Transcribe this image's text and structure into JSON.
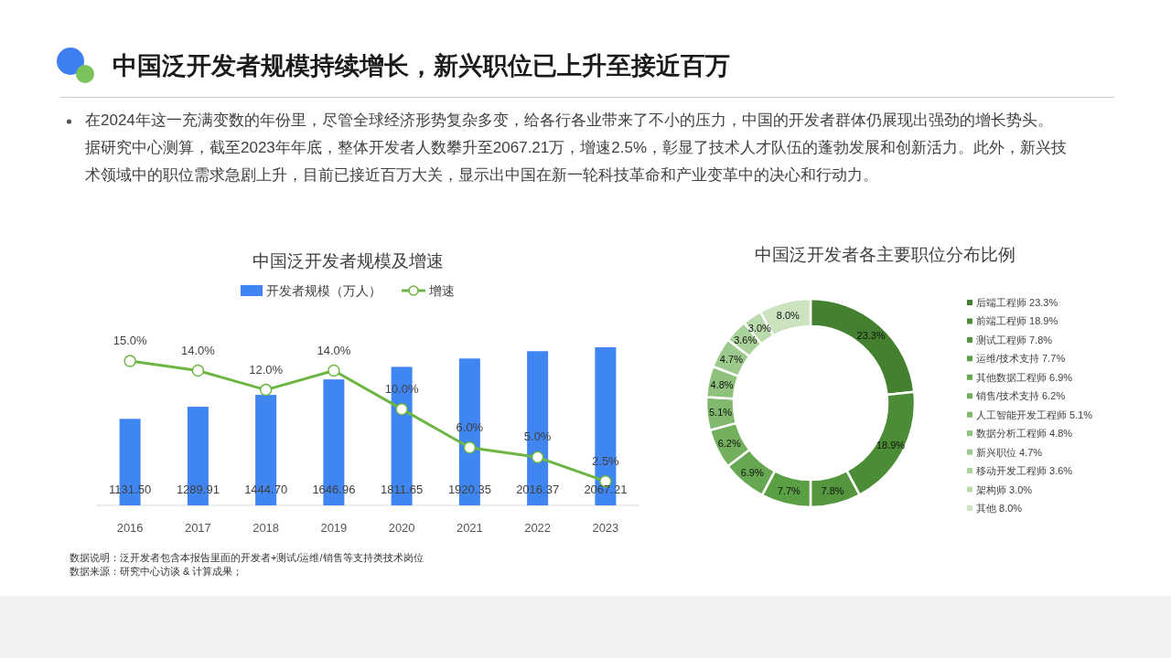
{
  "chart_data": [
    {
      "type": "other",
      "title": "中国泛开发者规模持续增长，新兴职位已上升至接近百万",
      "annotations": [
        "在2024年这一充满变数的年份里，尽管全球经济形势复杂多变，给各行各业带来了不小的压力，中国的开发者群体仍展现出强劲的增长势头。据研究中心测算，截至2023年年底，整体开发者人数攀升至2067.21万，增速2.5%，彰显了技术人才队伍的蓬勃发展和创新活力。此外，新兴技术领域中的职位需求急剧上升，目前已接近百万大关，显示出中国在新一轮科技革命和产业变革中的决心和行动力。"
      ]
    },
    {
      "type": "bar",
      "title": "中国泛开发者规模及增速",
      "categories": [
        "2016",
        "2017",
        "2018",
        "2019",
        "2020",
        "2021",
        "2022",
        "2023"
      ],
      "series": [
        {
          "name": "开发者规模（万人）",
          "type": "bar",
          "color": "#3f86f2",
          "values": [
            1131.5,
            1289.91,
            1444.7,
            1646.96,
            1811.65,
            1920.35,
            2016.37,
            2067.21
          ],
          "value_labels": [
            "1131.50",
            "1289.91",
            "1444.70",
            "1646.96",
            "1811.65",
            "1920.35",
            "2016.37",
            "2067.21"
          ]
        },
        {
          "name": "增速",
          "type": "line",
          "axis": "y2",
          "color": "#6db543",
          "values": [
            15.0,
            14.0,
            12.0,
            14.0,
            10.0,
            6.0,
            5.0,
            2.5
          ],
          "value_labels": [
            "15.0%",
            "14.0%",
            "12.0%",
            "14.0%",
            "10.0%",
            "6.0%",
            "5.0%",
            "2.5%"
          ]
        }
      ],
      "tick_labels": "x",
      "legend": "top",
      "marker": "circle",
      "annotations": [
        "数据说明：泛开发者包含本报告里面的开发者+测试/运维/销售等支持类技术岗位",
        "数据来源：研究中心访谈 & 计算成果；"
      ]
    },
    {
      "type": "donut",
      "title": "中国泛开发者各主要职位分布比例",
      "categories": [
        "后端工程师",
        "前端工程师",
        "测试工程师",
        "运维/技术支持",
        "其他数据工程师",
        "销售/技术支持",
        "人工智能开发工程师",
        "数据分析工程师",
        "新兴职位",
        "移动开发工程师",
        "架构师",
        "其他"
      ],
      "values": [
        23.3,
        18.9,
        7.8,
        7.7,
        6.9,
        6.2,
        5.1,
        4.8,
        4.7,
        3.6,
        3.0,
        8.0
      ],
      "value_labels": [
        "23.3%",
        "18.9%",
        "7.8%",
        "7.7%",
        "6.9%",
        "6.2%",
        "5.1%",
        "4.8%",
        "4.7%",
        "3.6%",
        "3.0%",
        "8.0%"
      ],
      "colors": [
        "#43802f",
        "#4b8c36",
        "#53963d",
        "#5b9f45",
        "#66a851",
        "#72b05e",
        "#80b86d",
        "#8ec17c",
        "#9cc98c",
        "#aad29b",
        "#b9daab",
        "#cbe4bf"
      ],
      "legend": "right"
    }
  ]
}
